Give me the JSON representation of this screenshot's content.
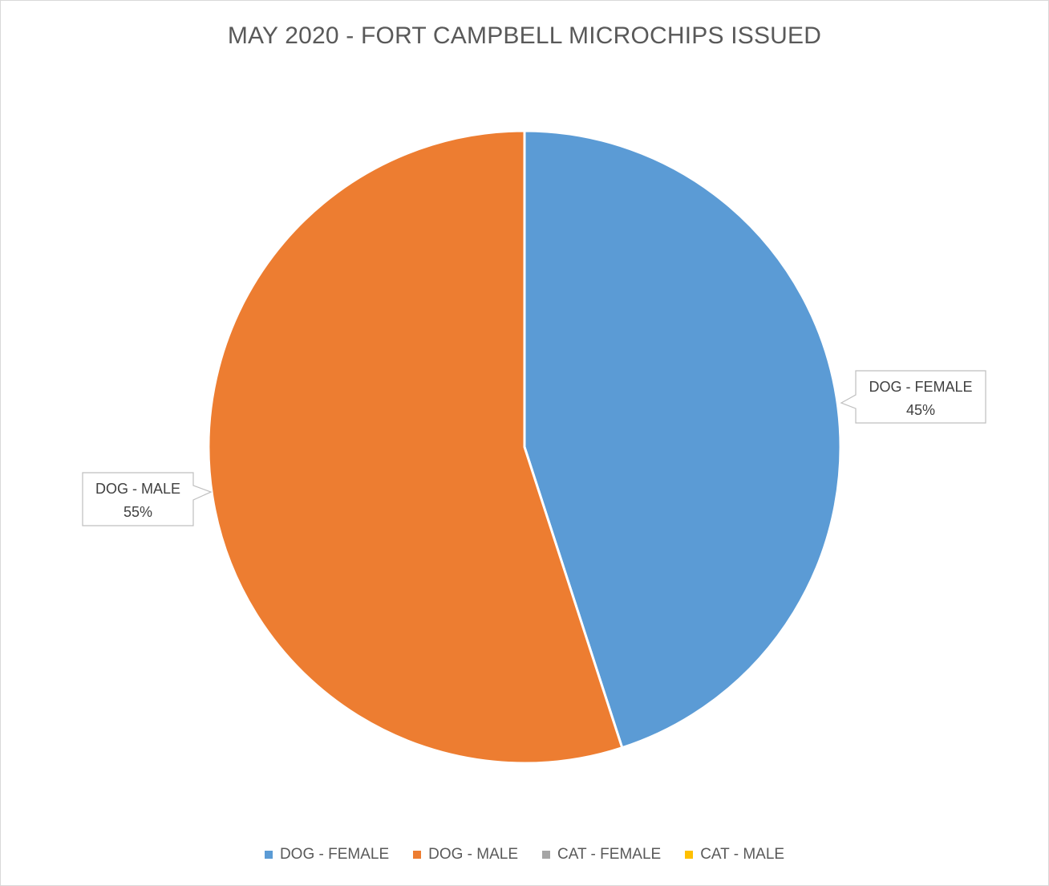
{
  "chart_data": {
    "type": "pie",
    "title": "MAY 2020 - FORT CAMPBELL MICROCHIPS ISSUED",
    "categories": [
      "DOG - FEMALE",
      "DOG - MALE",
      "CAT - FEMALE",
      "CAT - MALE"
    ],
    "values": [
      45,
      55,
      0,
      0
    ],
    "data_labels": [
      {
        "category": "DOG - FEMALE",
        "text": "45%"
      },
      {
        "category": "DOG - MALE",
        "text": "55%"
      }
    ],
    "colors": [
      "#5B9BD5",
      "#ED7D31",
      "#A5A5A5",
      "#FFC000"
    ],
    "legend": "bottom"
  }
}
